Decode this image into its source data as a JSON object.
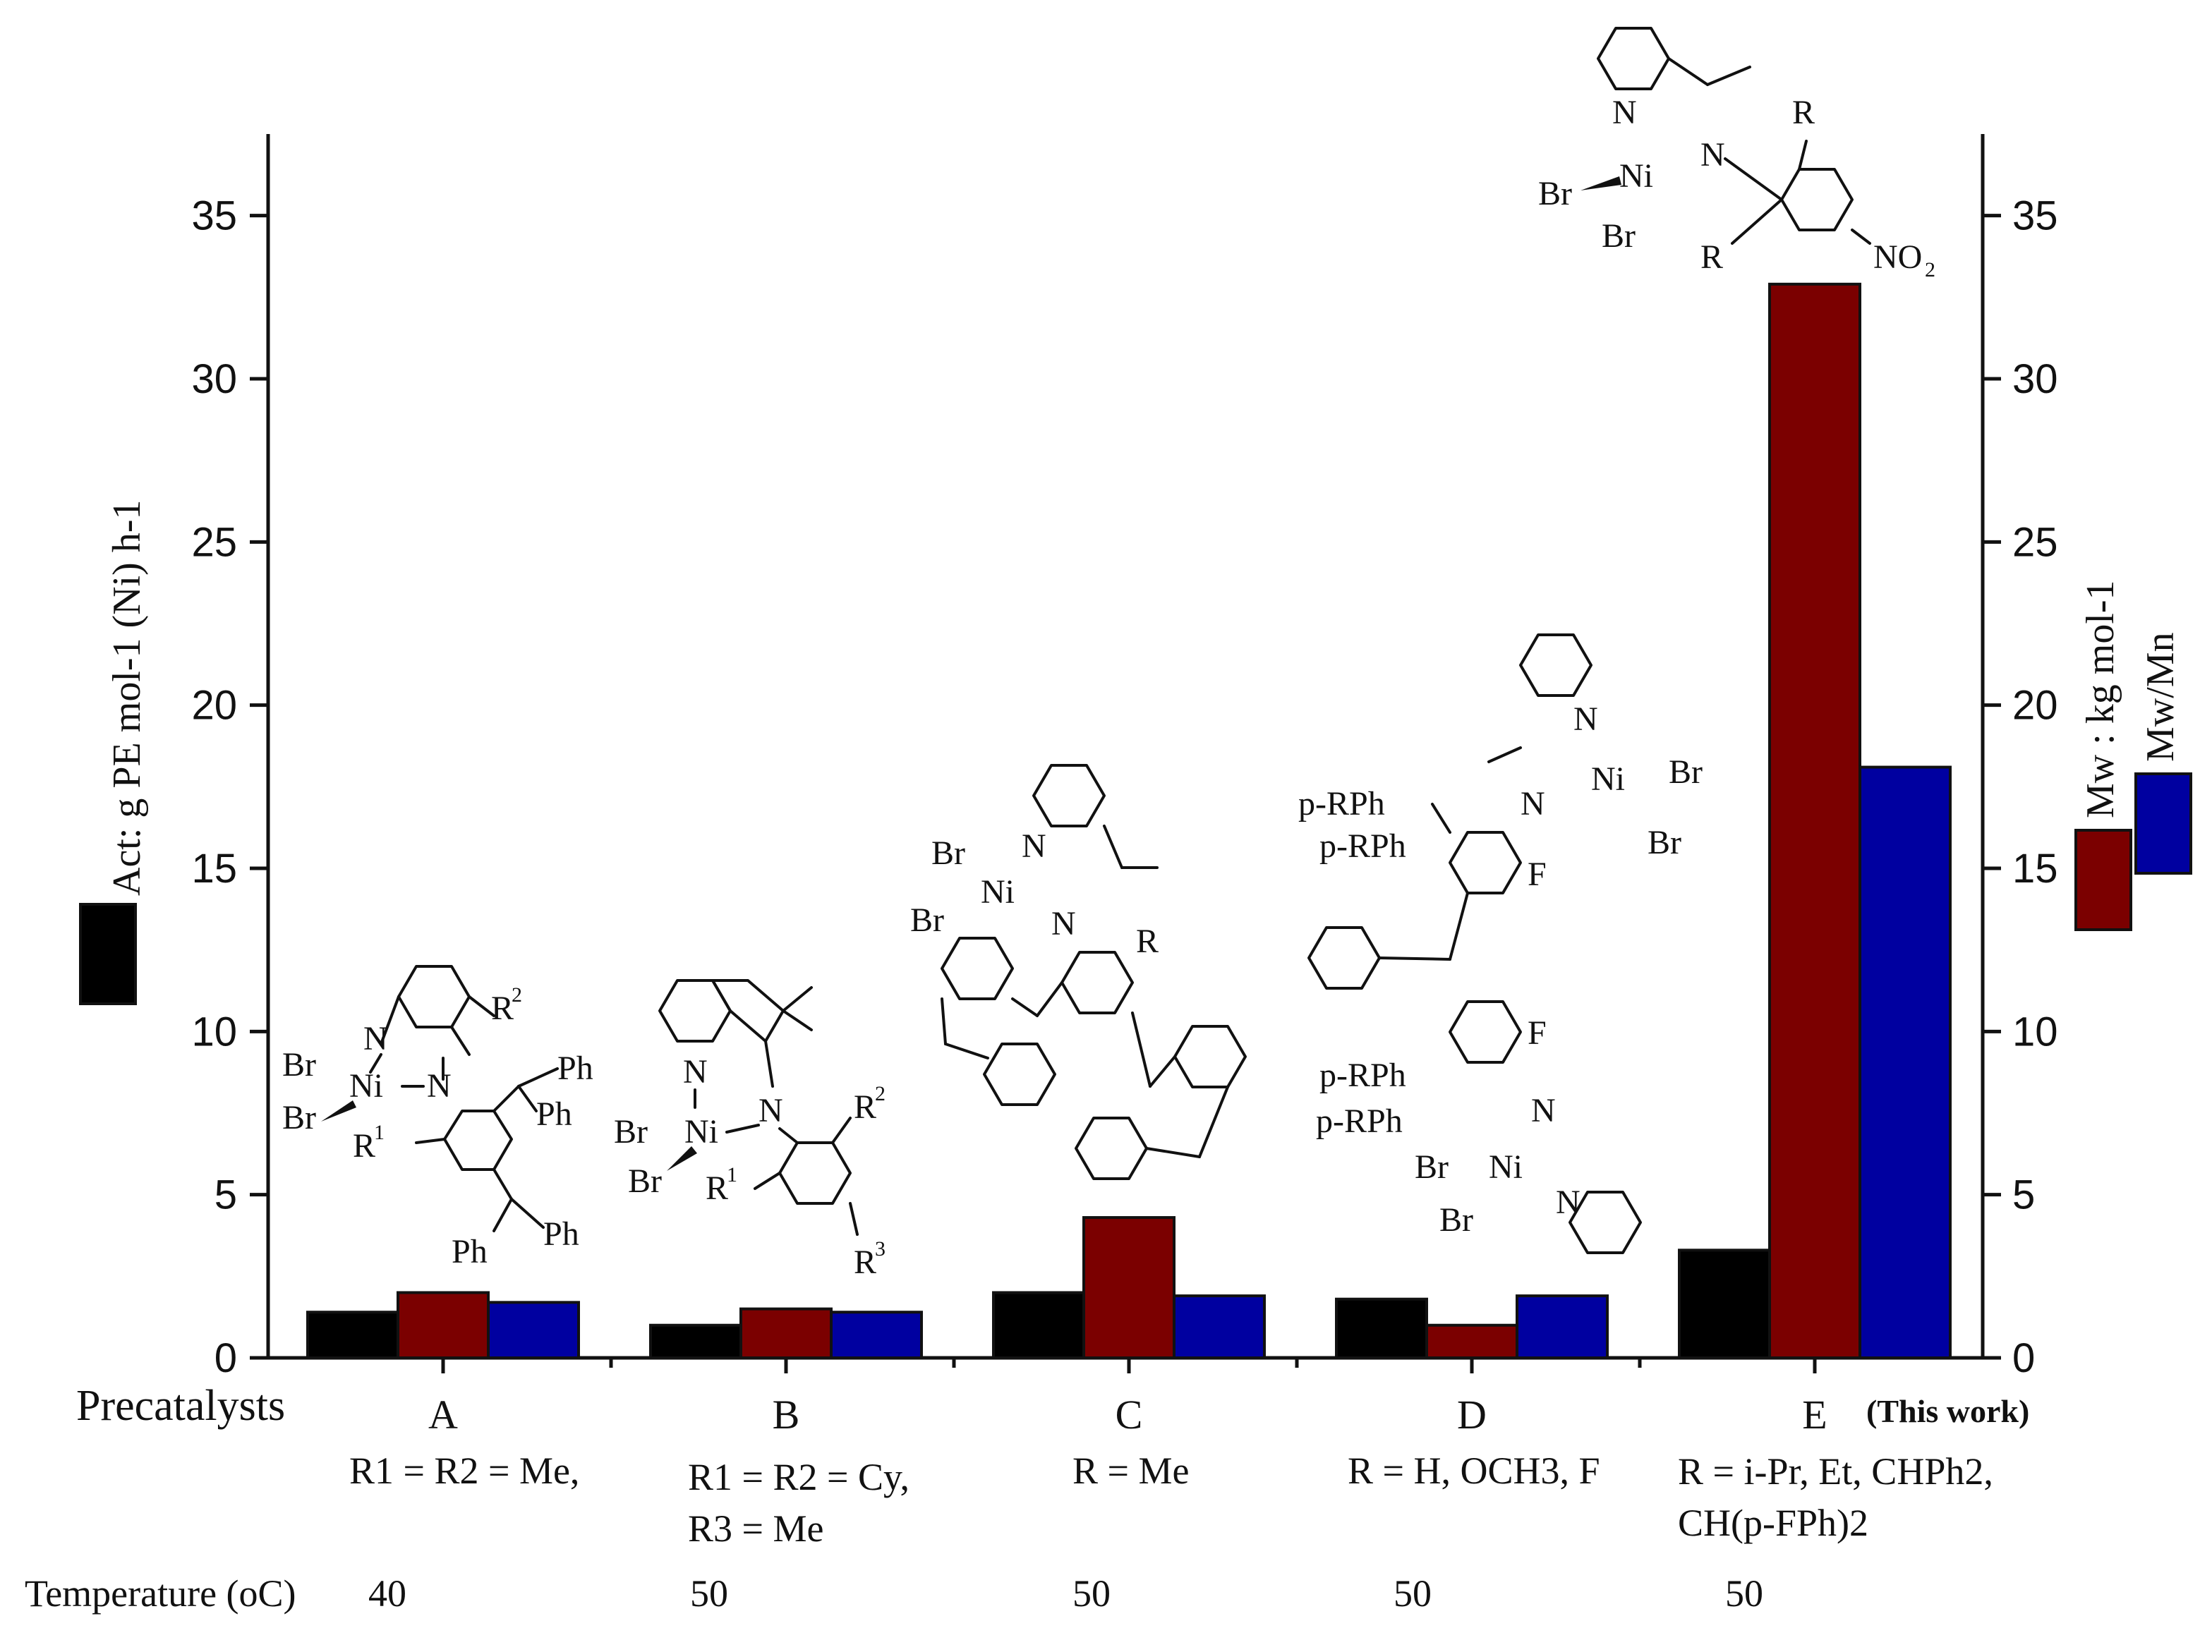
{
  "chart_data": {
    "type": "bar",
    "categories": [
      "A",
      "B",
      "C",
      "D",
      "E"
    ],
    "xlabel": "Precatalysts",
    "this_work_label": "(This work)",
    "series": [
      {
        "name": "Act: g PE mol-1 (Ni) h-1",
        "axis": "left",
        "color": "#000000",
        "values": [
          1.4,
          1.0,
          2.0,
          1.8,
          3.3
        ]
      },
      {
        "name": "Mw : kg mol-1",
        "axis": "right",
        "color": "#7b0000",
        "values": [
          2.0,
          1.5,
          4.3,
          1.0,
          32.9
        ]
      },
      {
        "name": "Mw/Mn",
        "axis": "right",
        "color": "#0000a0",
        "values": [
          1.7,
          1.4,
          1.9,
          1.9,
          18.1
        ]
      }
    ],
    "ylim": [
      0,
      37.5
    ],
    "yticks": [
      0,
      5,
      10,
      15,
      20,
      25,
      30,
      35
    ],
    "substituents": [
      "R1 = R2 = Me,",
      "R1 = R2 = Cy, R3 = Me",
      "R = Me",
      "R = H, OCH3, F",
      "R = i-Pr, Et, CHPh2, CH(p-FPh)2"
    ],
    "temperature_label": "Temperature (oC)",
    "temperatures": [
      40,
      50,
      50,
      50,
      50
    ]
  }
}
